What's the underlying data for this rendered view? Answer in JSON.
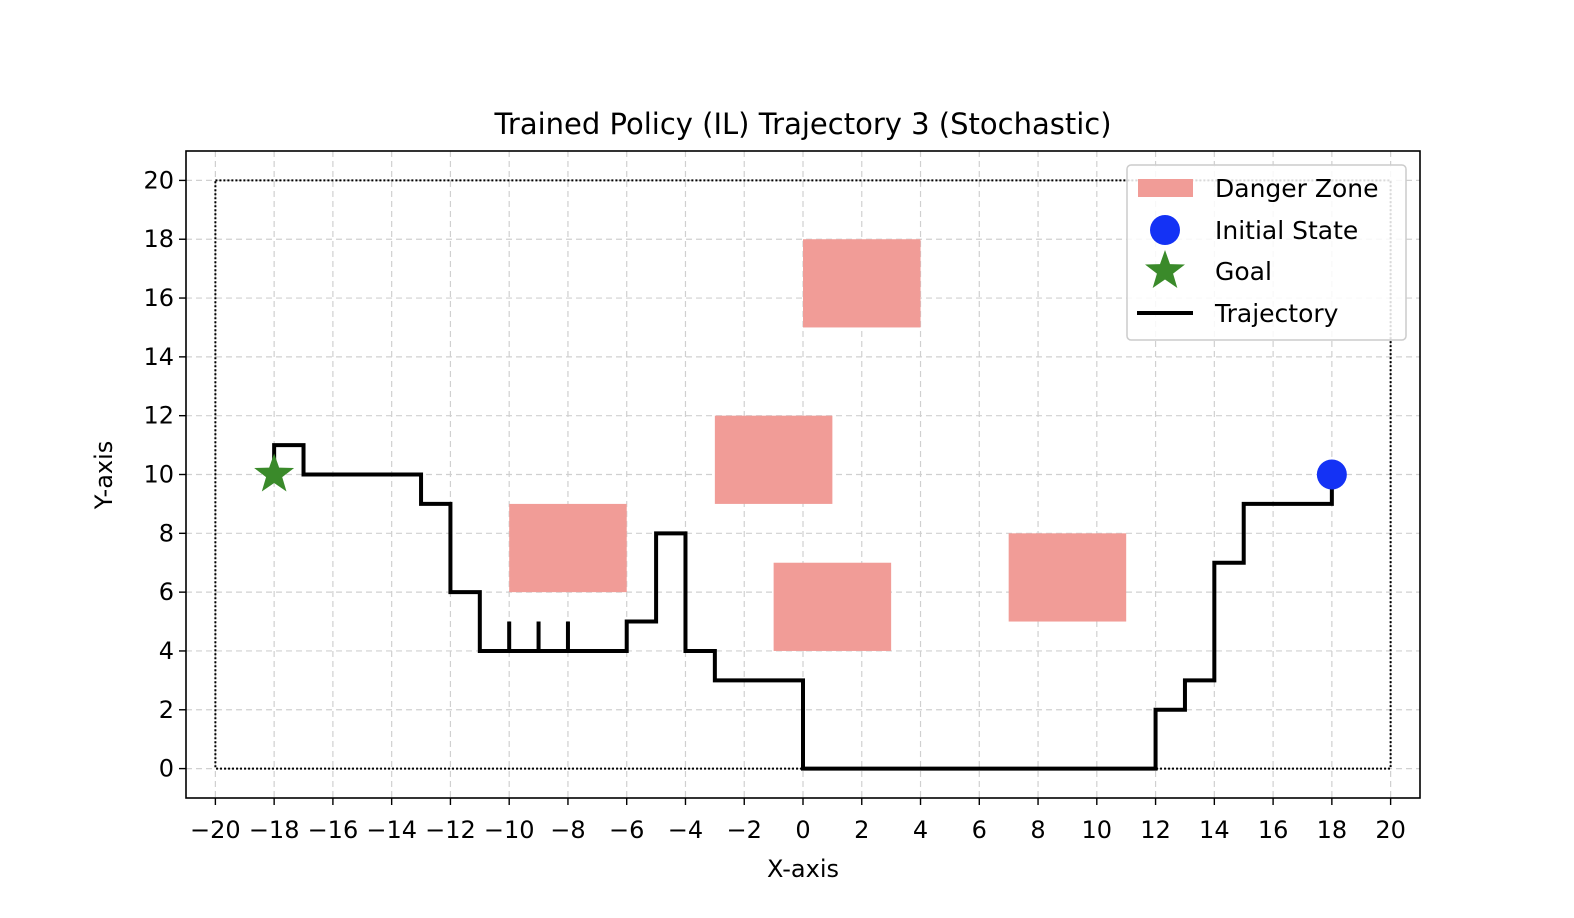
{
  "chart_data": {
    "type": "line",
    "title": "Trained Policy (IL) Trajectory 3 (Stochastic)",
    "xlabel": "X-axis",
    "ylabel": "Y-axis",
    "xlim": [
      -21,
      21
    ],
    "ylim": [
      -1,
      21
    ],
    "xticks": [
      -20,
      -18,
      -16,
      -14,
      -12,
      -10,
      -8,
      -6,
      -4,
      -2,
      0,
      2,
      4,
      6,
      8,
      10,
      12,
      14,
      16,
      18,
      20
    ],
    "yticks": [
      0,
      2,
      4,
      6,
      8,
      10,
      12,
      14,
      16,
      18,
      20
    ],
    "grid": true,
    "legend_position": "top-right",
    "boundary": {
      "x": [
        -20,
        20
      ],
      "y": [
        0,
        20
      ]
    },
    "danger_zones": [
      {
        "x": [
          0,
          4
        ],
        "y": [
          15,
          18
        ]
      },
      {
        "x": [
          -3,
          1
        ],
        "y": [
          9,
          12
        ]
      },
      {
        "x": [
          -10,
          -6
        ],
        "y": [
          6,
          9
        ]
      },
      {
        "x": [
          -1,
          3
        ],
        "y": [
          4,
          7
        ]
      },
      {
        "x": [
          7,
          11
        ],
        "y": [
          5,
          8
        ]
      }
    ],
    "initial_state": {
      "x": 18,
      "y": 10
    },
    "goal": {
      "x": -18,
      "y": 10
    },
    "trajectory": [
      [
        18,
        10
      ],
      [
        18,
        9
      ],
      [
        15,
        9
      ],
      [
        15,
        7
      ],
      [
        14,
        7
      ],
      [
        14,
        3
      ],
      [
        13,
        3
      ],
      [
        13,
        2
      ],
      [
        12,
        2
      ],
      [
        12,
        0
      ],
      [
        0,
        0
      ],
      [
        0,
        3
      ],
      [
        -3,
        3
      ],
      [
        -3,
        4
      ],
      [
        -4,
        4
      ],
      [
        -4,
        8
      ],
      [
        -5,
        8
      ],
      [
        -5,
        5
      ],
      [
        -6,
        5
      ],
      [
        -6,
        4
      ],
      [
        -8,
        4
      ],
      [
        -8,
        5
      ],
      [
        -8,
        4
      ],
      [
        -9,
        4
      ],
      [
        -9,
        5
      ],
      [
        -9,
        4
      ],
      [
        -10,
        4
      ],
      [
        -10,
        5
      ],
      [
        -10,
        4
      ],
      [
        -11,
        4
      ],
      [
        -11,
        6
      ],
      [
        -12,
        6
      ],
      [
        -12,
        9
      ],
      [
        -13,
        9
      ],
      [
        -13,
        10
      ],
      [
        -17,
        10
      ],
      [
        -17,
        11
      ],
      [
        -18,
        11
      ],
      [
        -18,
        10
      ]
    ],
    "legend": [
      {
        "label": "Danger Zone",
        "color": "#f19c97"
      },
      {
        "label": "Initial State",
        "color": "#1432f5"
      },
      {
        "label": "Goal",
        "color": "#3a8a2a"
      },
      {
        "label": "Trajectory",
        "color": "#000000"
      }
    ]
  }
}
